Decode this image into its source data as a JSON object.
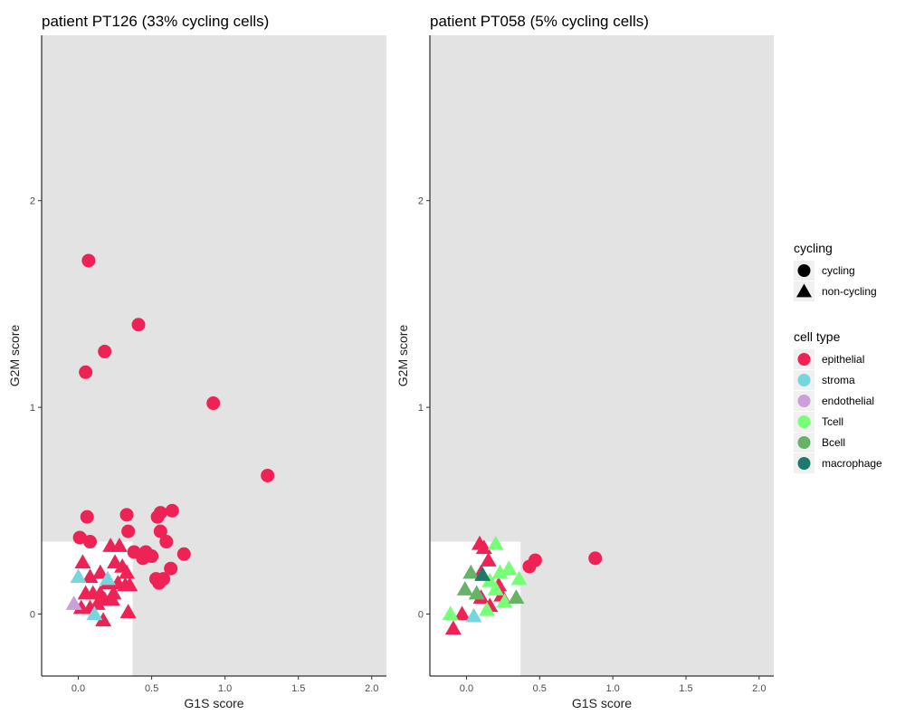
{
  "chart_data": [
    {
      "type": "scatter",
      "title": "patient PT126 (33% cycling cells)",
      "xlabel": "G1S score",
      "ylabel": "G2M score",
      "xlim": [
        -0.25,
        2.1
      ],
      "ylim": [
        -0.3,
        2.8
      ],
      "x_ticks": [
        "0.0",
        "0.5",
        "1.0",
        "1.5",
        "2.0"
      ],
      "y_ticks": [
        "0",
        "1",
        "2"
      ],
      "noncycling_region": {
        "x_max": 0.37,
        "y_max": 0.35
      },
      "points": [
        {
          "x": 0.07,
          "y": 1.71,
          "cycling": "cycling",
          "cell_type": "epithelial"
        },
        {
          "x": 0.41,
          "y": 1.4,
          "cycling": "cycling",
          "cell_type": "epithelial"
        },
        {
          "x": 0.18,
          "y": 1.27,
          "cycling": "cycling",
          "cell_type": "epithelial"
        },
        {
          "x": 0.05,
          "y": 1.17,
          "cycling": "cycling",
          "cell_type": "epithelial"
        },
        {
          "x": 0.92,
          "y": 1.02,
          "cycling": "cycling",
          "cell_type": "epithelial"
        },
        {
          "x": 1.29,
          "y": 0.67,
          "cycling": "cycling",
          "cell_type": "epithelial"
        },
        {
          "x": 0.06,
          "y": 0.47,
          "cycling": "cycling",
          "cell_type": "epithelial"
        },
        {
          "x": 0.33,
          "y": 0.48,
          "cycling": "cycling",
          "cell_type": "epithelial"
        },
        {
          "x": 0.56,
          "y": 0.49,
          "cycling": "cycling",
          "cell_type": "epithelial"
        },
        {
          "x": 0.64,
          "y": 0.5,
          "cycling": "cycling",
          "cell_type": "epithelial"
        },
        {
          "x": 0.54,
          "y": 0.47,
          "cycling": "cycling",
          "cell_type": "epithelial"
        },
        {
          "x": 0.01,
          "y": 0.37,
          "cycling": "cycling",
          "cell_type": "epithelial"
        },
        {
          "x": 0.08,
          "y": 0.35,
          "cycling": "cycling",
          "cell_type": "epithelial"
        },
        {
          "x": 0.34,
          "y": 0.4,
          "cycling": "cycling",
          "cell_type": "epithelial"
        },
        {
          "x": 0.56,
          "y": 0.4,
          "cycling": "cycling",
          "cell_type": "epithelial"
        },
        {
          "x": 0.6,
          "y": 0.35,
          "cycling": "cycling",
          "cell_type": "epithelial"
        },
        {
          "x": 0.38,
          "y": 0.3,
          "cycling": "cycling",
          "cell_type": "epithelial"
        },
        {
          "x": 0.46,
          "y": 0.3,
          "cycling": "cycling",
          "cell_type": "epithelial"
        },
        {
          "x": 0.44,
          "y": 0.27,
          "cycling": "cycling",
          "cell_type": "epithelial"
        },
        {
          "x": 0.5,
          "y": 0.28,
          "cycling": "cycling",
          "cell_type": "epithelial"
        },
        {
          "x": 0.72,
          "y": 0.29,
          "cycling": "cycling",
          "cell_type": "epithelial"
        },
        {
          "x": 0.63,
          "y": 0.22,
          "cycling": "cycling",
          "cell_type": "epithelial"
        },
        {
          "x": 0.53,
          "y": 0.17,
          "cycling": "cycling",
          "cell_type": "epithelial"
        },
        {
          "x": 0.58,
          "y": 0.17,
          "cycling": "cycling",
          "cell_type": "epithelial"
        },
        {
          "x": 0.55,
          "y": 0.15,
          "cycling": "cycling",
          "cell_type": "epithelial"
        },
        {
          "x": 0.03,
          "y": 0.25,
          "cycling": "non-cycling",
          "cell_type": "epithelial"
        },
        {
          "x": 0.08,
          "y": 0.18,
          "cycling": "non-cycling",
          "cell_type": "epithelial"
        },
        {
          "x": 0.15,
          "y": 0.2,
          "cycling": "non-cycling",
          "cell_type": "epithelial"
        },
        {
          "x": 0.22,
          "y": 0.33,
          "cycling": "non-cycling",
          "cell_type": "epithelial"
        },
        {
          "x": 0.28,
          "y": 0.33,
          "cycling": "non-cycling",
          "cell_type": "epithelial"
        },
        {
          "x": 0.25,
          "y": 0.25,
          "cycling": "non-cycling",
          "cell_type": "epithelial"
        },
        {
          "x": 0.3,
          "y": 0.23,
          "cycling": "non-cycling",
          "cell_type": "epithelial"
        },
        {
          "x": 0.33,
          "y": 0.2,
          "cycling": "non-cycling",
          "cell_type": "epithelial"
        },
        {
          "x": 0.2,
          "y": 0.15,
          "cycling": "non-cycling",
          "cell_type": "epithelial"
        },
        {
          "x": 0.27,
          "y": 0.15,
          "cycling": "non-cycling",
          "cell_type": "epithelial"
        },
        {
          "x": 0.32,
          "y": 0.14,
          "cycling": "non-cycling",
          "cell_type": "epithelial"
        },
        {
          "x": 0.35,
          "y": 0.14,
          "cycling": "non-cycling",
          "cell_type": "epithelial"
        },
        {
          "x": 0.05,
          "y": 0.1,
          "cycling": "non-cycling",
          "cell_type": "epithelial"
        },
        {
          "x": 0.1,
          "y": 0.1,
          "cycling": "non-cycling",
          "cell_type": "epithelial"
        },
        {
          "x": 0.15,
          "y": 0.1,
          "cycling": "non-cycling",
          "cell_type": "epithelial"
        },
        {
          "x": 0.24,
          "y": 0.1,
          "cycling": "non-cycling",
          "cell_type": "epithelial"
        },
        {
          "x": 0.02,
          "y": 0.03,
          "cycling": "non-cycling",
          "cell_type": "epithelial"
        },
        {
          "x": 0.08,
          "y": 0.03,
          "cycling": "non-cycling",
          "cell_type": "epithelial"
        },
        {
          "x": 0.13,
          "y": 0.05,
          "cycling": "non-cycling",
          "cell_type": "epithelial"
        },
        {
          "x": 0.18,
          "y": 0.07,
          "cycling": "non-cycling",
          "cell_type": "epithelial"
        },
        {
          "x": 0.23,
          "y": 0.07,
          "cycling": "non-cycling",
          "cell_type": "epithelial"
        },
        {
          "x": 0.17,
          "y": -0.03,
          "cycling": "non-cycling",
          "cell_type": "epithelial"
        },
        {
          "x": 0.34,
          "y": 0.01,
          "cycling": "non-cycling",
          "cell_type": "epithelial"
        },
        {
          "x": 0.0,
          "y": 0.18,
          "cycling": "non-cycling",
          "cell_type": "stroma"
        },
        {
          "x": 0.2,
          "y": 0.17,
          "cycling": "non-cycling",
          "cell_type": "stroma"
        },
        {
          "x": 0.11,
          "y": 0.0,
          "cycling": "non-cycling",
          "cell_type": "stroma"
        },
        {
          "x": -0.03,
          "y": 0.05,
          "cycling": "non-cycling",
          "cell_type": "endothelial"
        }
      ]
    },
    {
      "type": "scatter",
      "title": "patient PT058 (5% cycling cells)",
      "xlabel": "G1S score",
      "ylabel": "G2M score",
      "xlim": [
        -0.25,
        2.1
      ],
      "ylim": [
        -0.3,
        2.8
      ],
      "x_ticks": [
        "0.0",
        "0.5",
        "1.0",
        "1.5",
        "2.0"
      ],
      "y_ticks": [
        "0",
        "1",
        "2"
      ],
      "noncycling_region": {
        "x_max": 0.37,
        "y_max": 0.35
      },
      "points": [
        {
          "x": 0.88,
          "y": 0.27,
          "cycling": "cycling",
          "cell_type": "epithelial"
        },
        {
          "x": 0.47,
          "y": 0.26,
          "cycling": "cycling",
          "cell_type": "epithelial"
        },
        {
          "x": 0.43,
          "y": 0.23,
          "cycling": "cycling",
          "cell_type": "epithelial"
        },
        {
          "x": 0.09,
          "y": 0.34,
          "cycling": "non-cycling",
          "cell_type": "epithelial"
        },
        {
          "x": 0.12,
          "y": 0.32,
          "cycling": "non-cycling",
          "cell_type": "epithelial"
        },
        {
          "x": 0.15,
          "y": 0.26,
          "cycling": "non-cycling",
          "cell_type": "epithelial"
        },
        {
          "x": 0.1,
          "y": 0.2,
          "cycling": "non-cycling",
          "cell_type": "epithelial"
        },
        {
          "x": 0.22,
          "y": 0.14,
          "cycling": "non-cycling",
          "cell_type": "epithelial"
        },
        {
          "x": 0.1,
          "y": 0.08,
          "cycling": "non-cycling",
          "cell_type": "epithelial"
        },
        {
          "x": 0.16,
          "y": 0.04,
          "cycling": "non-cycling",
          "cell_type": "epithelial"
        },
        {
          "x": 0.24,
          "y": 0.09,
          "cycling": "non-cycling",
          "cell_type": "epithelial"
        },
        {
          "x": -0.03,
          "y": 0.0,
          "cycling": "non-cycling",
          "cell_type": "epithelial"
        },
        {
          "x": -0.09,
          "y": -0.07,
          "cycling": "non-cycling",
          "cell_type": "epithelial"
        },
        {
          "x": 0.05,
          "y": -0.01,
          "cycling": "non-cycling",
          "cell_type": "stroma"
        },
        {
          "x": 0.2,
          "y": 0.34,
          "cycling": "non-cycling",
          "cell_type": "Tcell"
        },
        {
          "x": 0.29,
          "y": 0.22,
          "cycling": "non-cycling",
          "cell_type": "Tcell"
        },
        {
          "x": 0.36,
          "y": 0.17,
          "cycling": "non-cycling",
          "cell_type": "Tcell"
        },
        {
          "x": 0.23,
          "y": 0.2,
          "cycling": "non-cycling",
          "cell_type": "Tcell"
        },
        {
          "x": 0.16,
          "y": 0.16,
          "cycling": "non-cycling",
          "cell_type": "Tcell"
        },
        {
          "x": 0.2,
          "y": 0.12,
          "cycling": "non-cycling",
          "cell_type": "Tcell"
        },
        {
          "x": 0.26,
          "y": 0.06,
          "cycling": "non-cycling",
          "cell_type": "Tcell"
        },
        {
          "x": 0.14,
          "y": 0.02,
          "cycling": "non-cycling",
          "cell_type": "Tcell"
        },
        {
          "x": -0.11,
          "y": 0.0,
          "cycling": "non-cycling",
          "cell_type": "Tcell"
        },
        {
          "x": 0.03,
          "y": 0.2,
          "cycling": "non-cycling",
          "cell_type": "Bcell"
        },
        {
          "x": -0.01,
          "y": 0.12,
          "cycling": "non-cycling",
          "cell_type": "Bcell"
        },
        {
          "x": 0.07,
          "y": 0.1,
          "cycling": "non-cycling",
          "cell_type": "Bcell"
        },
        {
          "x": 0.34,
          "y": 0.08,
          "cycling": "non-cycling",
          "cell_type": "Bcell"
        },
        {
          "x": 0.11,
          "y": 0.19,
          "cycling": "non-cycling",
          "cell_type": "macrophage"
        }
      ]
    }
  ],
  "legend": {
    "shape_title": "cycling",
    "shape_items": [
      {
        "label": "cycling",
        "shape": "circle"
      },
      {
        "label": "non-cycling",
        "shape": "triangle"
      }
    ],
    "color_title": "cell type",
    "color_items": [
      {
        "label": "epithelial",
        "color": "#ee2255"
      },
      {
        "label": "stroma",
        "color": "#77d5de"
      },
      {
        "label": "endothelial",
        "color": "#c9a0dc"
      },
      {
        "label": "Tcell",
        "color": "#77ff77"
      },
      {
        "label": "Bcell",
        "color": "#66b266"
      },
      {
        "label": "macrophage",
        "color": "#1b7a6a"
      }
    ]
  }
}
